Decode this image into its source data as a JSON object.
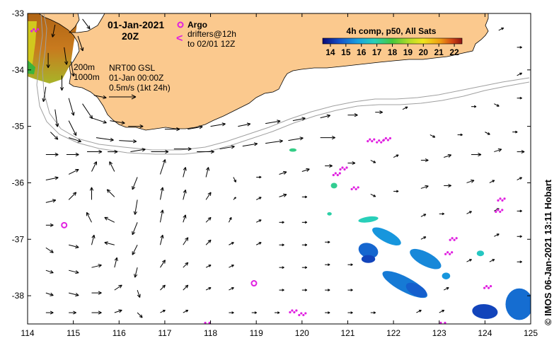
{
  "title": {
    "date": "01-Jan-2021",
    "time": "20Z"
  },
  "argo": {
    "label": "Argo",
    "drifter_line1": "drifters@12h",
    "drifter_line2": "to 02/01 12Z",
    "drifter_symbol": "<"
  },
  "depth_labels": {
    "d200": "200m",
    "d1000": "1000m"
  },
  "product": {
    "line1": "NRT00 GSL",
    "line2": "01-Jan 00:00Z",
    "line3": "0.5m/s (1kt 24h)"
  },
  "colorbar": {
    "title": "4h comp, p50, All Sats",
    "ticks": [
      "14",
      "15",
      "16",
      "17",
      "18",
      "19",
      "20",
      "21",
      "22"
    ],
    "min": 13.5,
    "max": 22.5
  },
  "credit": "© IMOS 06-Jan-2021 13:11 Hobart",
  "axes": {
    "x_ticks": [
      "114",
      "115",
      "116",
      "117",
      "118",
      "119",
      "120",
      "121",
      "122",
      "123",
      "124",
      "125"
    ],
    "y_ticks": [
      "-33",
      "-34",
      "-35",
      "-36",
      "-37",
      "-38"
    ],
    "lon_range": [
      114,
      125
    ],
    "lat_range": [
      -38.5,
      -33
    ]
  },
  "colors": {
    "land": "#fbc98e",
    "argo": "#e020e0",
    "isobath": "#a0a0a0",
    "frame": "#000000"
  },
  "argo_floats": [
    {
      "lon": 114.8,
      "lat": -36.75
    },
    {
      "lon": 118.95,
      "lat": -37.78
    }
  ],
  "drifters": [
    {
      "lon": 114.15,
      "lat": -33.3
    },
    {
      "lon": 121.5,
      "lat": -35.25
    },
    {
      "lon": 121.7,
      "lat": -35.27
    },
    {
      "lon": 121.85,
      "lat": -35.23
    },
    {
      "lon": 120.75,
      "lat": -35.85
    },
    {
      "lon": 120.9,
      "lat": -35.75
    },
    {
      "lon": 121.15,
      "lat": -36.1
    },
    {
      "lon": 124.35,
      "lat": -36.3
    },
    {
      "lon": 124.3,
      "lat": -36.5
    },
    {
      "lon": 123.3,
      "lat": -37.0
    },
    {
      "lon": 123.2,
      "lat": -37.25
    },
    {
      "lon": 124.05,
      "lat": -37.85
    },
    {
      "lon": 119.8,
      "lat": -38.28
    },
    {
      "lon": 120.0,
      "lat": -38.33
    },
    {
      "lon": 123.05,
      "lat": -38.5
    },
    {
      "lon": 117.9,
      "lat": -38.5
    }
  ],
  "sst_patches": [
    {
      "lon": 121.85,
      "lat": -36.95,
      "rx": 0.35,
      "ry": 0.1,
      "rot": 28,
      "temp": 15.6
    },
    {
      "lon": 122.7,
      "lat": -37.35,
      "rx": 0.38,
      "ry": 0.12,
      "rot": 28,
      "temp": 15.4
    },
    {
      "lon": 121.45,
      "lat": -37.2,
      "rx": 0.22,
      "ry": 0.13,
      "rot": 20,
      "temp": 14.9
    },
    {
      "lon": 121.45,
      "lat": -37.35,
      "rx": 0.15,
      "ry": 0.07,
      "rot": 0,
      "temp": 14.4
    },
    {
      "lon": 122.25,
      "lat": -37.8,
      "rx": 0.55,
      "ry": 0.13,
      "rot": 28,
      "temp": 15.2
    },
    {
      "lon": 122.5,
      "lat": -37.9,
      "rx": 0.25,
      "ry": 0.1,
      "rot": 28,
      "temp": 14.8
    },
    {
      "lon": 124.0,
      "lat": -38.28,
      "rx": 0.28,
      "ry": 0.13,
      "rot": 5,
      "temp": 14.4
    },
    {
      "lon": 124.75,
      "lat": -38.15,
      "rx": 0.3,
      "ry": 0.28,
      "rot": 0,
      "temp": 15.0
    },
    {
      "lon": 123.15,
      "lat": -37.65,
      "rx": 0.09,
      "ry": 0.06,
      "rot": 0,
      "temp": 15.6
    },
    {
      "lon": 121.45,
      "lat": -36.65,
      "rx": 0.22,
      "ry": 0.05,
      "rot": -8,
      "temp": 16.8
    },
    {
      "lon": 120.7,
      "lat": -36.05,
      "rx": 0.07,
      "ry": 0.05,
      "rot": 0,
      "temp": 17.2
    },
    {
      "lon": 120.6,
      "lat": -36.55,
      "rx": 0.05,
      "ry": 0.03,
      "rot": 0,
      "temp": 17.0
    },
    {
      "lon": 119.8,
      "lat": -35.42,
      "rx": 0.08,
      "ry": 0.03,
      "rot": 0,
      "temp": 17.3
    },
    {
      "lon": 123.9,
      "lat": -37.25,
      "rx": 0.08,
      "ry": 0.05,
      "rot": 0,
      "temp": 16.6
    }
  ],
  "currents": [
    {
      "lon": 114.9,
      "lat": -34.5,
      "u": 0.1,
      "v": -0.35
    },
    {
      "lon": 115.2,
      "lat": -34.6,
      "u": 0.2,
      "v": -0.3
    },
    {
      "lon": 114.6,
      "lat": -34.7,
      "u": 0.05,
      "v": -0.35
    },
    {
      "lon": 114.9,
      "lat": -34.9,
      "u": 0.15,
      "v": -0.3
    },
    {
      "lon": 115.4,
      "lat": -34.85,
      "u": 0.3,
      "v": -0.1
    },
    {
      "lon": 115.8,
      "lat": -34.9,
      "u": 0.3,
      "v": -0.05
    },
    {
      "lon": 116.2,
      "lat": -35.0,
      "u": 0.3,
      "v": 0.0
    },
    {
      "lon": 114.5,
      "lat": -35.1,
      "u": 0.15,
      "v": -0.15
    },
    {
      "lon": 114.9,
      "lat": -35.2,
      "u": 0.25,
      "v": -0.08
    },
    {
      "lon": 115.5,
      "lat": -35.2,
      "u": 0.35,
      "v": -0.05
    },
    {
      "lon": 116.0,
      "lat": -35.25,
      "u": 0.35,
      "v": -0.02
    },
    {
      "lon": 114.4,
      "lat": -35.5,
      "u": 0.25,
      "v": 0.0
    },
    {
      "lon": 114.85,
      "lat": -35.5,
      "u": 0.25,
      "v": 0.0
    },
    {
      "lon": 115.3,
      "lat": -35.45,
      "u": 0.3,
      "v": 0.0
    },
    {
      "lon": 115.75,
      "lat": -35.45,
      "u": 0.2,
      "v": 0.0
    },
    {
      "lon": 116.25,
      "lat": -35.45,
      "u": 0.3,
      "v": 0.05
    },
    {
      "lon": 116.7,
      "lat": -35.45,
      "u": 0.35,
      "v": 0.0
    },
    {
      "lon": 117.2,
      "lat": -35.4,
      "u": 0.35,
      "v": 0.0
    },
    {
      "lon": 117.7,
      "lat": -35.45,
      "u": 0.35,
      "v": 0.0
    },
    {
      "lon": 118.2,
      "lat": -35.4,
      "u": 0.3,
      "v": 0.05
    },
    {
      "lon": 118.7,
      "lat": -35.35,
      "u": 0.3,
      "v": 0.05
    },
    {
      "lon": 119.2,
      "lat": -35.3,
      "u": 0.35,
      "v": 0.05
    },
    {
      "lon": 119.7,
      "lat": -35.25,
      "u": 0.3,
      "v": 0.05
    },
    {
      "lon": 117.0,
      "lat": -35.05,
      "u": 0.3,
      "v": 0.0
    },
    {
      "lon": 117.5,
      "lat": -35.05,
      "u": 0.3,
      "v": 0.05
    },
    {
      "lon": 118.0,
      "lat": -35.0,
      "u": 0.3,
      "v": 0.05
    },
    {
      "lon": 118.6,
      "lat": -35.0,
      "u": 0.25,
      "v": 0.05
    },
    {
      "lon": 119.2,
      "lat": -34.95,
      "u": 0.3,
      "v": 0.05
    },
    {
      "lon": 119.8,
      "lat": -34.9,
      "u": 0.25,
      "v": 0.05
    },
    {
      "lon": 120.4,
      "lat": -35.2,
      "u": 0.3,
      "v": 0.0
    },
    {
      "lon": 120.4,
      "lat": -34.85,
      "u": 0.2,
      "v": 0.05
    },
    {
      "lon": 121.0,
      "lat": -34.8,
      "u": 0.2,
      "v": 0.0
    },
    {
      "lon": 121.6,
      "lat": -34.75,
      "u": 0.15,
      "v": 0.0
    },
    {
      "lon": 122.2,
      "lat": -34.7,
      "u": 0.1,
      "v": 0.05
    },
    {
      "lon": 114.4,
      "lat": -35.95,
      "u": 0.25,
      "v": 0.05
    },
    {
      "lon": 114.9,
      "lat": -35.85,
      "u": 0.2,
      "v": 0.1
    },
    {
      "lon": 115.4,
      "lat": -35.8,
      "u": 0.1,
      "v": 0.2
    },
    {
      "lon": 115.9,
      "lat": -35.8,
      "u": -0.1,
      "v": 0.2
    },
    {
      "lon": 116.4,
      "lat": -35.9,
      "u": -0.1,
      "v": -0.25
    },
    {
      "lon": 116.9,
      "lat": -35.85,
      "u": 0.1,
      "v": 0.3
    },
    {
      "lon": 117.4,
      "lat": -35.9,
      "u": 0.05,
      "v": 0.2
    },
    {
      "lon": 117.9,
      "lat": -35.9,
      "u": 0.05,
      "v": 0.2
    },
    {
      "lon": 118.5,
      "lat": -35.9,
      "u": 0.05,
      "v": -0.1
    },
    {
      "lon": 119.0,
      "lat": -35.9,
      "u": 0.1,
      "v": 0.0
    },
    {
      "lon": 119.5,
      "lat": -35.85,
      "u": 0.15,
      "v": 0.05
    },
    {
      "lon": 120.0,
      "lat": -35.8,
      "u": 0.15,
      "v": 0.05
    },
    {
      "lon": 120.5,
      "lat": -35.7,
      "u": 0.15,
      "v": 0.0
    },
    {
      "lon": 121.0,
      "lat": -35.65,
      "u": 0.15,
      "v": 0.0
    },
    {
      "lon": 121.5,
      "lat": -35.6,
      "u": 0.1,
      "v": -0.05
    },
    {
      "lon": 122.0,
      "lat": -35.55,
      "u": 0.1,
      "v": 0.05
    },
    {
      "lon": 122.6,
      "lat": -35.6,
      "u": 0.15,
      "v": 0.0
    },
    {
      "lon": 123.1,
      "lat": -35.55,
      "u": 0.15,
      "v": 0.05
    },
    {
      "lon": 123.7,
      "lat": -35.5,
      "u": 0.2,
      "v": 0.0
    },
    {
      "lon": 124.2,
      "lat": -35.45,
      "u": 0.15,
      "v": 0.05
    },
    {
      "lon": 124.7,
      "lat": -35.45,
      "u": 0.15,
      "v": 0.0
    },
    {
      "lon": 122.8,
      "lat": -35.15,
      "u": 0.1,
      "v": -0.05
    },
    {
      "lon": 123.4,
      "lat": -35.15,
      "u": 0.1,
      "v": 0.0
    },
    {
      "lon": 124.0,
      "lat": -35.1,
      "u": 0.1,
      "v": -0.05
    },
    {
      "lon": 124.6,
      "lat": -35.1,
      "u": 0.1,
      "v": 0.0
    },
    {
      "lon": 114.4,
      "lat": -36.35,
      "u": 0.2,
      "v": 0.05
    },
    {
      "lon": 114.9,
      "lat": -36.3,
      "u": 0.15,
      "v": 0.15
    },
    {
      "lon": 115.4,
      "lat": -36.3,
      "u": 0.0,
      "v": 0.25
    },
    {
      "lon": 115.9,
      "lat": -36.25,
      "u": -0.15,
      "v": 0.15
    },
    {
      "lon": 116.4,
      "lat": -36.3,
      "u": -0.05,
      "v": -0.3
    },
    {
      "lon": 116.9,
      "lat": -36.3,
      "u": 0.05,
      "v": 0.25
    },
    {
      "lon": 117.4,
      "lat": -36.3,
      "u": 0.05,
      "v": 0.2
    },
    {
      "lon": 117.9,
      "lat": -36.3,
      "u": 0.1,
      "v": 0.15
    },
    {
      "lon": 118.5,
      "lat": -36.3,
      "u": 0.05,
      "v": 0.05
    },
    {
      "lon": 119.0,
      "lat": -36.3,
      "u": 0.1,
      "v": 0.05
    },
    {
      "lon": 119.5,
      "lat": -36.25,
      "u": 0.15,
      "v": 0.05
    },
    {
      "lon": 120.0,
      "lat": -36.25,
      "u": 0.1,
      "v": 0.0
    },
    {
      "lon": 121.5,
      "lat": -36.2,
      "u": 0.1,
      "v": -0.05
    },
    {
      "lon": 122.0,
      "lat": -36.15,
      "u": 0.1,
      "v": 0.0
    },
    {
      "lon": 122.6,
      "lat": -36.1,
      "u": 0.15,
      "v": 0.05
    },
    {
      "lon": 123.1,
      "lat": -36.05,
      "u": 0.15,
      "v": 0.0
    },
    {
      "lon": 123.6,
      "lat": -36.0,
      "u": 0.15,
      "v": 0.05
    },
    {
      "lon": 124.1,
      "lat": -36.0,
      "u": 0.1,
      "v": 0.05
    },
    {
      "lon": 124.7,
      "lat": -35.95,
      "u": 0.1,
      "v": 0.05
    },
    {
      "lon": 114.4,
      "lat": -36.75,
      "u": 0.15,
      "v": 0.0
    },
    {
      "lon": 115.4,
      "lat": -36.7,
      "u": -0.1,
      "v": 0.2
    },
    {
      "lon": 115.9,
      "lat": -36.7,
      "u": -0.2,
      "v": 0.1
    },
    {
      "lon": 116.4,
      "lat": -36.7,
      "u": -0.1,
      "v": -0.25
    },
    {
      "lon": 116.9,
      "lat": -36.7,
      "u": 0.05,
      "v": 0.25
    },
    {
      "lon": 117.4,
      "lat": -36.7,
      "u": 0.05,
      "v": 0.15
    },
    {
      "lon": 117.9,
      "lat": -36.7,
      "u": 0.1,
      "v": 0.1
    },
    {
      "lon": 118.4,
      "lat": -36.7,
      "u": 0.05,
      "v": 0.1
    },
    {
      "lon": 119.0,
      "lat": -36.7,
      "u": 0.1,
      "v": 0.05
    },
    {
      "lon": 119.5,
      "lat": -36.7,
      "u": 0.1,
      "v": 0.0
    },
    {
      "lon": 120.0,
      "lat": -36.7,
      "u": 0.1,
      "v": 0.0
    },
    {
      "lon": 122.6,
      "lat": -36.6,
      "u": 0.1,
      "v": 0.05
    },
    {
      "lon": 123.0,
      "lat": -36.55,
      "u": 0.1,
      "v": 0.0
    },
    {
      "lon": 123.6,
      "lat": -36.55,
      "u": 0.1,
      "v": 0.05
    },
    {
      "lon": 124.2,
      "lat": -36.5,
      "u": 0.1,
      "v": 0.05
    },
    {
      "lon": 124.7,
      "lat": -36.5,
      "u": 0.1,
      "v": 0.0
    },
    {
      "lon": 114.4,
      "lat": -37.15,
      "u": 0.15,
      "v": -0.1
    },
    {
      "lon": 114.9,
      "lat": -37.1,
      "u": 0.2,
      "v": -0.05
    },
    {
      "lon": 115.4,
      "lat": -37.1,
      "u": 0.05,
      "v": 0.2
    },
    {
      "lon": 115.9,
      "lat": -37.1,
      "u": -0.2,
      "v": 0.05
    },
    {
      "lon": 116.4,
      "lat": -37.1,
      "u": -0.1,
      "v": -0.2
    },
    {
      "lon": 116.9,
      "lat": -37.1,
      "u": 0.05,
      "v": 0.2
    },
    {
      "lon": 117.4,
      "lat": -37.1,
      "u": 0.1,
      "v": 0.15
    },
    {
      "lon": 117.9,
      "lat": -37.1,
      "u": 0.1,
      "v": 0.1
    },
    {
      "lon": 118.4,
      "lat": -37.1,
      "u": 0.1,
      "v": 0.05
    },
    {
      "lon": 119.0,
      "lat": -37.1,
      "u": 0.1,
      "v": 0.05
    },
    {
      "lon": 119.5,
      "lat": -37.1,
      "u": 0.1,
      "v": 0.0
    },
    {
      "lon": 120.0,
      "lat": -37.1,
      "u": 0.1,
      "v": 0.0
    },
    {
      "lon": 120.5,
      "lat": -37.05,
      "u": 0.1,
      "v": 0.0
    },
    {
      "lon": 122.6,
      "lat": -37.0,
      "u": 0.1,
      "v": 0.05
    },
    {
      "lon": 124.2,
      "lat": -36.95,
      "u": 0.1,
      "v": 0.05
    },
    {
      "lon": 124.7,
      "lat": -36.95,
      "u": 0.1,
      "v": 0.0
    },
    {
      "lon": 114.4,
      "lat": -37.55,
      "u": 0.15,
      "v": -0.05
    },
    {
      "lon": 114.9,
      "lat": -37.55,
      "u": 0.2,
      "v": -0.05
    },
    {
      "lon": 115.4,
      "lat": -37.5,
      "u": 0.2,
      "v": 0.05
    },
    {
      "lon": 115.9,
      "lat": -37.5,
      "u": 0.05,
      "v": 0.2
    },
    {
      "lon": 116.4,
      "lat": -37.5,
      "u": -0.05,
      "v": -0.2
    },
    {
      "lon": 116.9,
      "lat": -37.5,
      "u": 0.1,
      "v": 0.15
    },
    {
      "lon": 117.4,
      "lat": -37.5,
      "u": 0.1,
      "v": 0.1
    },
    {
      "lon": 117.9,
      "lat": -37.5,
      "u": 0.1,
      "v": 0.05
    },
    {
      "lon": 118.4,
      "lat": -37.5,
      "u": 0.1,
      "v": 0.05
    },
    {
      "lon": 119.5,
      "lat": -37.5,
      "u": 0.1,
      "v": 0.0
    },
    {
      "lon": 120.0,
      "lat": -37.5,
      "u": 0.1,
      "v": 0.0
    },
    {
      "lon": 120.5,
      "lat": -37.45,
      "u": 0.1,
      "v": 0.0
    },
    {
      "lon": 121.0,
      "lat": -37.45,
      "u": 0.1,
      "v": 0.0
    },
    {
      "lon": 123.6,
      "lat": -37.4,
      "u": 0.1,
      "v": 0.05
    },
    {
      "lon": 124.1,
      "lat": -37.4,
      "u": 0.1,
      "v": 0.05
    },
    {
      "lon": 124.7,
      "lat": -37.4,
      "u": 0.1,
      "v": 0.0
    },
    {
      "lon": 114.4,
      "lat": -37.95,
      "u": 0.15,
      "v": -0.05
    },
    {
      "lon": 114.9,
      "lat": -37.95,
      "u": 0.2,
      "v": -0.05
    },
    {
      "lon": 115.4,
      "lat": -37.95,
      "u": 0.2,
      "v": 0.0
    },
    {
      "lon": 115.9,
      "lat": -37.9,
      "u": 0.15,
      "v": 0.1
    },
    {
      "lon": 116.4,
      "lat": -37.9,
      "u": 0.05,
      "v": -0.15
    },
    {
      "lon": 116.9,
      "lat": -37.9,
      "u": 0.1,
      "v": 0.1
    },
    {
      "lon": 117.4,
      "lat": -37.9,
      "u": 0.1,
      "v": 0.1
    },
    {
      "lon": 117.9,
      "lat": -37.9,
      "u": 0.1,
      "v": 0.05
    },
    {
      "lon": 118.4,
      "lat": -37.9,
      "u": 0.1,
      "v": 0.05
    },
    {
      "lon": 119.5,
      "lat": -37.9,
      "u": 0.1,
      "v": 0.0
    },
    {
      "lon": 120.0,
      "lat": -37.9,
      "u": 0.1,
      "v": 0.0
    },
    {
      "lon": 120.5,
      "lat": -37.9,
      "u": 0.1,
      "v": 0.0
    },
    {
      "lon": 121.0,
      "lat": -37.9,
      "u": 0.1,
      "v": 0.0
    },
    {
      "lon": 123.1,
      "lat": -37.9,
      "u": 0.1,
      "v": 0.05
    },
    {
      "lon": 114.4,
      "lat": -38.3,
      "u": 0.15,
      "v": 0.0
    },
    {
      "lon": 114.9,
      "lat": -38.3,
      "u": 0.15,
      "v": 0.0
    },
    {
      "lon": 115.4,
      "lat": -38.3,
      "u": 0.2,
      "v": 0.0
    },
    {
      "lon": 115.9,
      "lat": -38.3,
      "u": 0.15,
      "v": 0.05
    },
    {
      "lon": 116.4,
      "lat": -38.3,
      "u": 0.1,
      "v": -0.1
    },
    {
      "lon": 116.9,
      "lat": -38.3,
      "u": 0.1,
      "v": 0.05
    },
    {
      "lon": 117.4,
      "lat": -38.3,
      "u": 0.1,
      "v": 0.05
    },
    {
      "lon": 118.4,
      "lat": -38.3,
      "u": 0.1,
      "v": 0.0
    },
    {
      "lon": 118.9,
      "lat": -38.3,
      "u": 0.1,
      "v": 0.0
    },
    {
      "lon": 119.4,
      "lat": -38.3,
      "u": 0.1,
      "v": 0.0
    },
    {
      "lon": 120.5,
      "lat": -38.3,
      "u": 0.1,
      "v": 0.0
    },
    {
      "lon": 121.0,
      "lat": -38.3,
      "u": 0.1,
      "v": 0.0
    },
    {
      "lon": 121.5,
      "lat": -38.3,
      "u": 0.1,
      "v": 0.0
    },
    {
      "lon": 122.5,
      "lat": -38.3,
      "u": 0.1,
      "v": 0.05
    },
    {
      "lon": 123.0,
      "lat": -38.3,
      "u": 0.1,
      "v": 0.05
    },
    {
      "lon": 114.4,
      "lat": -34.3,
      "u": -0.05,
      "v": -0.3
    },
    {
      "lon": 114.75,
      "lat": -34.1,
      "u": 0.0,
      "v": -0.3
    },
    {
      "lon": 114.45,
      "lat": -33.7,
      "u": 0.0,
      "v": -0.3
    },
    {
      "lon": 114.8,
      "lat": -33.6,
      "u": 0.05,
      "v": -0.35
    },
    {
      "lon": 115.1,
      "lat": -33.4,
      "u": 0.1,
      "v": -0.3
    },
    {
      "lon": 114.6,
      "lat": -33.2,
      "u": -0.05,
      "v": -0.25
    },
    {
      "lon": 115.2,
      "lat": -33.1,
      "u": 0.15,
      "v": -0.2
    },
    {
      "lon": 114.95,
      "lat": -33.85,
      "u": 0.05,
      "v": -0.3
    },
    {
      "lon": 115.45,
      "lat": -34.45,
      "u": 0.25,
      "v": -0.05
    },
    {
      "lon": 124.7,
      "lat": -33.6,
      "u": 0.1,
      "v": 0.0
    },
    {
      "lon": 124.7,
      "lat": -34.1,
      "u": 0.1,
      "v": 0.05
    },
    {
      "lon": 124.7,
      "lat": -34.5,
      "u": 0.1,
      "v": 0.0
    },
    {
      "lon": 124.2,
      "lat": -34.6,
      "u": 0.1,
      "v": -0.05
    },
    {
      "lon": 123.7,
      "lat": -34.65,
      "u": 0.1,
      "v": 0.0
    },
    {
      "lon": 124.3,
      "lat": -33.3,
      "u": 0.1,
      "v": 0.05
    }
  ]
}
